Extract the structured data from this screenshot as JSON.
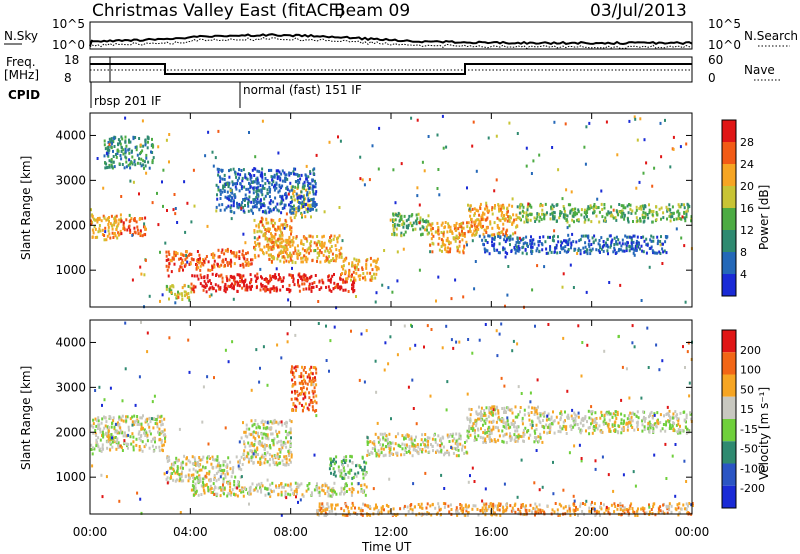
{
  "header": {
    "title": "Christmas Valley East (fitACF)",
    "beam": "Beam 09",
    "date": "03/Jul/2013"
  },
  "status_panels": {
    "nsky_label": "N.Sky",
    "nsky_ticks": [
      "10^5",
      "10^0"
    ],
    "nsearch_label": "N.Search",
    "nsearch_ticks": [
      "10^5",
      "10^0"
    ],
    "freq_label_1": "Freq.",
    "freq_label_2": "[MHz]",
    "freq_ticks": [
      "18",
      "8"
    ],
    "nave_label": "Nave",
    "nave_ticks": [
      "60",
      "0"
    ],
    "cpid_label": "CPID",
    "cpid_modes": [
      {
        "label": "rbsp 201 IF",
        "start_hour": 0
      },
      {
        "label": "normal (fast) 151 IF",
        "start_hour": 6
      }
    ],
    "freq_segments": [
      {
        "from": 0,
        "to": 3,
        "value": "high"
      },
      {
        "from": 3,
        "to": 15,
        "value": "low"
      },
      {
        "from": 15,
        "to": 24,
        "value": "high"
      }
    ]
  },
  "chart_data": [
    {
      "type": "heatmap",
      "name": "power",
      "ylabel": "Slant Range [km]",
      "ylim": [
        180,
        4500
      ],
      "yticks": [
        "1000",
        "2000",
        "3000",
        "4000"
      ],
      "xticks": [
        "00:00",
        "04:00",
        "08:00",
        "12:00",
        "16:00",
        "20:00",
        "00:00"
      ],
      "xlim_hours": [
        0,
        24
      ],
      "colorbar_label": "Power [dB]",
      "colorbar_ticks": [
        "28",
        "24",
        "20",
        "16",
        "12",
        "8",
        "4"
      ],
      "colors": [
        "#1a2bd6",
        "#2468b8",
        "#2f8a70",
        "#4cab43",
        "#c8c435",
        "#f6a523",
        "#f25b16",
        "#e01616"
      ],
      "echo_regions": [
        {
          "hours": [
            0.0,
            1.2
          ],
          "range_km": [
            1700,
            2300
          ],
          "level": 5
        },
        {
          "hours": [
            1.2,
            2.2
          ],
          "range_km": [
            1800,
            2200
          ],
          "level": 6
        },
        {
          "hours": [
            3.0,
            5.0
          ],
          "range_km": [
            1000,
            1450
          ],
          "level": 6
        },
        {
          "hours": [
            5.0,
            6.5
          ],
          "range_km": [
            1100,
            1500
          ],
          "level": 6
        },
        {
          "hours": [
            6.5,
            8.0
          ],
          "range_km": [
            1300,
            2200
          ],
          "level": 5
        },
        {
          "hours": [
            8.0,
            8.8
          ],
          "range_km": [
            2200,
            2900
          ],
          "level": 4
        },
        {
          "hours": [
            3.0,
            4.0
          ],
          "range_km": [
            350,
            700
          ],
          "level": 4
        },
        {
          "hours": [
            4.0,
            10.5
          ],
          "range_km": [
            550,
            950
          ],
          "level": 7
        },
        {
          "hours": [
            7.0,
            10.0
          ],
          "range_km": [
            1200,
            1800
          ],
          "level": 5
        },
        {
          "hours": [
            10.0,
            11.5
          ],
          "range_km": [
            800,
            1300
          ],
          "level": 5
        },
        {
          "hours": [
            12.0,
            13.5
          ],
          "range_km": [
            1800,
            2300
          ],
          "level": 3
        },
        {
          "hours": [
            13.5,
            15.0
          ],
          "range_km": [
            1400,
            2100
          ],
          "level": 5
        },
        {
          "hours": [
            15.0,
            17.0
          ],
          "range_km": [
            1800,
            2500
          ],
          "level": 5
        },
        {
          "hours": [
            17.0,
            24.0
          ],
          "range_km": [
            2100,
            2500
          ],
          "level": 3
        },
        {
          "hours": [
            15.5,
            23.0
          ],
          "range_km": [
            1400,
            1800
          ],
          "level": 1
        },
        {
          "hours": [
            0.5,
            2.5
          ],
          "range_km": [
            3300,
            4000
          ],
          "level": 2
        },
        {
          "hours": [
            5.0,
            9.0
          ],
          "range_km": [
            2300,
            3300
          ],
          "level": 1
        }
      ]
    },
    {
      "type": "heatmap",
      "name": "velocity",
      "ylabel": "Slant Range [km]",
      "xlabel": "Time UT",
      "ylim": [
        180,
        4500
      ],
      "yticks": [
        "1000",
        "2000",
        "3000",
        "4000"
      ],
      "xticks": [
        "00:00",
        "04:00",
        "08:00",
        "12:00",
        "16:00",
        "20:00",
        "00:00"
      ],
      "xlim_hours": [
        0,
        24
      ],
      "colorbar_label": "Velocity [m s⁻¹]",
      "colorbar_ticks": [
        "200",
        "100",
        "50",
        "15",
        "-15",
        "-50",
        "-100",
        "-200"
      ],
      "colors": [
        "#1a2bd6",
        "#2b55c4",
        "#2f8a70",
        "#6fcf3b",
        "#c8c8c0",
        "#f6a523",
        "#f26616",
        "#e01616"
      ],
      "echo_regions": [
        {
          "hours": [
            0.0,
            3.0
          ],
          "range_km": [
            1600,
            2400
          ],
          "level": 4
        },
        {
          "hours": [
            3.0,
            6.0
          ],
          "range_km": [
            900,
            1500
          ],
          "level": 4
        },
        {
          "hours": [
            6.0,
            8.0
          ],
          "range_km": [
            1300,
            2300
          ],
          "level": 4
        },
        {
          "hours": [
            8.0,
            9.0
          ],
          "range_km": [
            2500,
            3500
          ],
          "level": 6
        },
        {
          "hours": [
            9.5,
            11.0
          ],
          "range_km": [
            1000,
            1500
          ],
          "level": 3
        },
        {
          "hours": [
            4.0,
            11.0
          ],
          "range_km": [
            600,
            900
          ],
          "level": 4
        },
        {
          "hours": [
            11.0,
            15.0
          ],
          "range_km": [
            1500,
            2000
          ],
          "level": 4
        },
        {
          "hours": [
            15.0,
            18.0
          ],
          "range_km": [
            1800,
            2600
          ],
          "level": 4
        },
        {
          "hours": [
            18.0,
            24.0
          ],
          "range_km": [
            2000,
            2500
          ],
          "level": 4
        },
        {
          "hours": [
            9.0,
            24.0
          ],
          "range_km": [
            180,
            450
          ],
          "level": 5
        }
      ]
    }
  ]
}
